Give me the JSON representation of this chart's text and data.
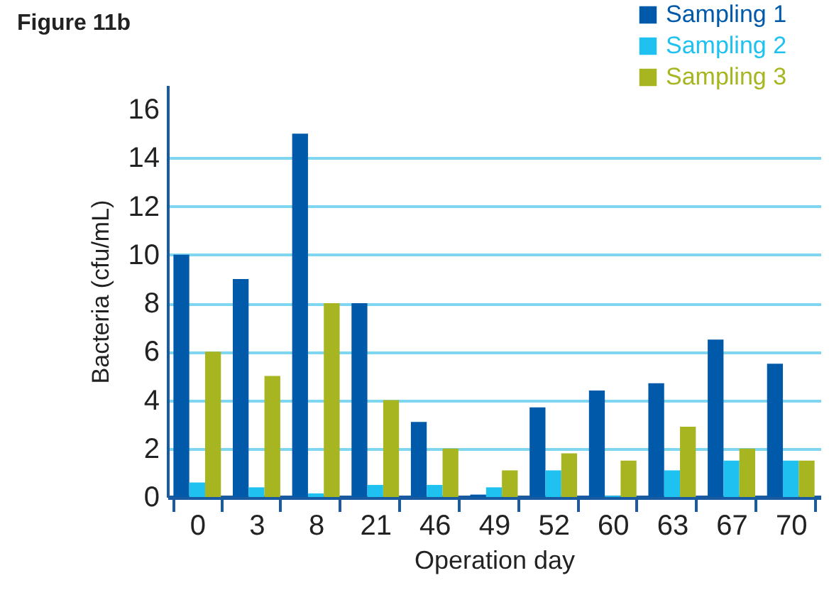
{
  "chart_data": {
    "type": "bar",
    "title": "Figure 11b",
    "xlabel": "Operation day",
    "ylabel": "Bacteria (cfu/mL)",
    "categories": [
      "0",
      "3",
      "8",
      "21",
      "46",
      "49",
      "52",
      "60",
      "63",
      "67",
      "70"
    ],
    "series": [
      {
        "name": "Sampling 1",
        "color": "#005aa9",
        "values": [
          10,
          9,
          15,
          8,
          3.1,
          0.1,
          3.7,
          4.4,
          4.7,
          6.5,
          5.5
        ]
      },
      {
        "name": "Sampling 2",
        "color": "#1fc1f0",
        "values": [
          0.6,
          0.4,
          0.15,
          0.5,
          0.5,
          0.4,
          1.1,
          0.05,
          1.1,
          1.5,
          1.5
        ]
      },
      {
        "name": "Sampling 3",
        "color": "#a7b520",
        "values": [
          6,
          5,
          8,
          4,
          2,
          1.1,
          1.8,
          1.5,
          2.9,
          2.0,
          1.5
        ]
      }
    ],
    "ylim": [
      0,
      17
    ],
    "yticks": [
      0,
      2,
      4,
      6,
      8,
      10,
      12,
      14,
      16
    ],
    "grid": "y",
    "legend": "top right"
  }
}
